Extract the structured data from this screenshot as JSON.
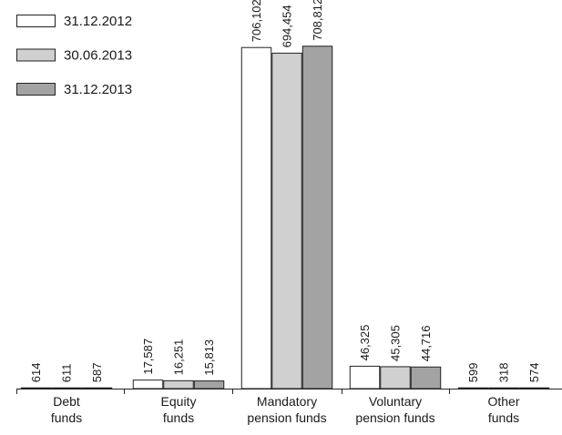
{
  "chart_data": {
    "type": "bar",
    "categories": [
      [
        "Debt",
        "funds"
      ],
      [
        "Equity",
        "funds"
      ],
      [
        "Mandatory",
        "pension funds"
      ],
      [
        "Voluntary",
        "pension funds"
      ],
      [
        "Other",
        "funds"
      ]
    ],
    "series": [
      {
        "name": "31.12.2012",
        "color": "#ffffff",
        "values": [
          614,
          17587,
          706102,
          46325,
          599
        ],
        "labels": [
          "614",
          "17,587",
          "706,102",
          "46,325",
          "599"
        ]
      },
      {
        "name": "30.06.2013",
        "color": "#d0d0d0",
        "values": [
          611,
          16251,
          694454,
          45305,
          318
        ],
        "labels": [
          "611",
          "16,251",
          "694,454",
          "45,305",
          "318"
        ]
      },
      {
        "name": "31.12.2013",
        "color": "#a3a3a3",
        "values": [
          587,
          15813,
          708812,
          44716,
          574
        ],
        "labels": [
          "587",
          "15,813",
          "708,812",
          "44,716",
          "574"
        ]
      }
    ],
    "title": "",
    "xlabel": "",
    "ylabel": "",
    "ylim": [
      0,
      780000
    ],
    "grid": false,
    "legend": "top-left",
    "value_label_orientation": "vertical"
  }
}
